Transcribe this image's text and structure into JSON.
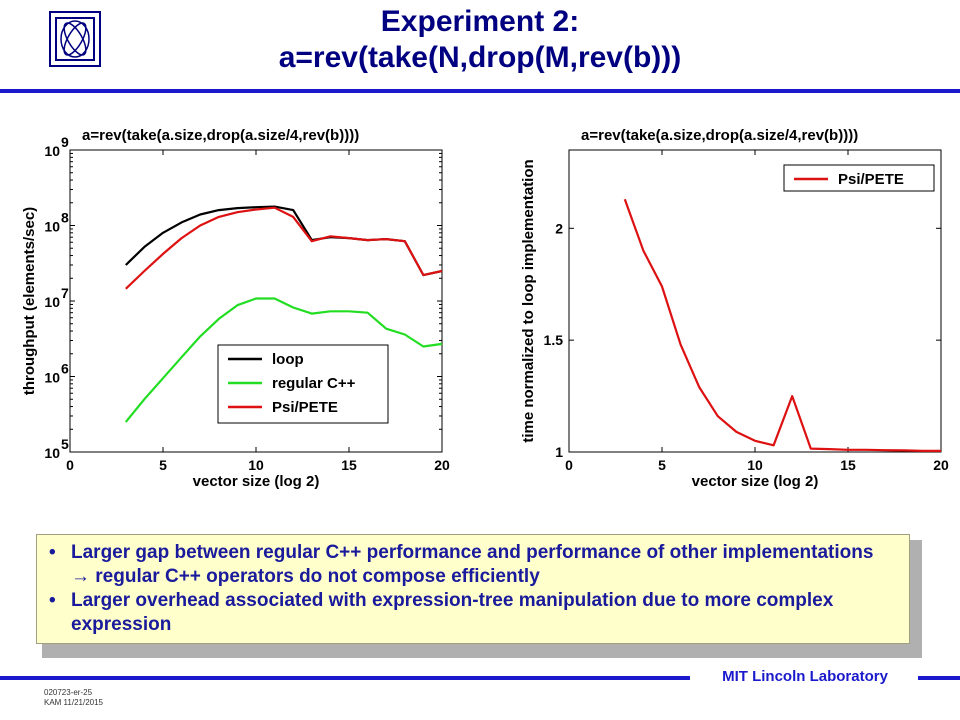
{
  "header": {
    "title_line1": "Experiment 2:",
    "title_line2": "a=rev(take(N,drop(M,rev(b)))",
    "logo_icon": "lincoln-lab-logo-icon"
  },
  "colors": {
    "title": "#000080",
    "rule": "#1a1acc",
    "loop": "#000000",
    "regular": "#22dd22",
    "psi": "#dd1111"
  },
  "chart_data": [
    {
      "type": "line",
      "title": "a=rev(take(a.size,drop(a.size/4,rev(b))))",
      "xlabel": "vector size (log 2)",
      "ylabel": "throughput (elements/sec)",
      "y_scale": "log",
      "xlim": [
        0,
        20
      ],
      "ylim": [
        100000,
        1000000000
      ],
      "x_ticks": [
        0,
        5,
        10,
        15,
        20
      ],
      "y_ticks": [
        {
          "value": 100000,
          "base": "10",
          "exp": "5"
        },
        {
          "value": 1000000,
          "base": "10",
          "exp": "6"
        },
        {
          "value": 10000000,
          "base": "10",
          "exp": "7"
        },
        {
          "value": 100000000,
          "base": "10",
          "exp": "8"
        },
        {
          "value": 1000000000,
          "base": "10",
          "exp": "9"
        }
      ],
      "legend_position": "bottom-right",
      "series": [
        {
          "name": "loop",
          "color": "#000000",
          "x": [
            3,
            4,
            5,
            6,
            7,
            8,
            9,
            10,
            11,
            12,
            13,
            14,
            15,
            16,
            17,
            18,
            19,
            20
          ],
          "y": [
            30000000,
            52000000,
            80000000,
            110000000,
            140000000,
            160000000,
            170000000,
            175000000,
            178000000,
            160000000,
            64000000,
            70000000,
            68000000,
            64000000,
            66000000,
            62000000,
            22000000,
            25000000
          ]
        },
        {
          "name": "regular C++",
          "color": "#22dd22",
          "x": [
            3,
            4,
            5,
            6,
            7,
            8,
            9,
            10,
            11,
            12,
            13,
            14,
            15,
            16,
            17,
            18,
            19,
            20
          ],
          "y": [
            250000,
            500000,
            950000,
            1800000,
            3400000,
            5800000,
            8800000,
            10800000,
            10800000,
            8200000,
            6800000,
            7300000,
            7300000,
            7000000,
            4300000,
            3600000,
            2500000,
            2700000
          ]
        },
        {
          "name": "Psi/PETE",
          "color": "#dd1111",
          "x": [
            3,
            4,
            5,
            6,
            7,
            8,
            9,
            10,
            11,
            12,
            13,
            14,
            15,
            16,
            17,
            18,
            19,
            20
          ],
          "y": [
            14500000,
            25000000,
            42000000,
            68000000,
            100000000,
            130000000,
            150000000,
            163000000,
            172000000,
            130000000,
            62000000,
            72000000,
            68000000,
            64000000,
            66000000,
            62000000,
            22000000,
            25000000
          ]
        }
      ]
    },
    {
      "type": "line",
      "title": "a=rev(take(a.size,drop(a.size/4,rev(b))))",
      "xlabel": "vector size (log 2)",
      "ylabel": "time normalized to loop implementation",
      "xlim": [
        0,
        20
      ],
      "ylim": [
        1,
        2.35
      ],
      "x_ticks": [
        0,
        5,
        10,
        15,
        20
      ],
      "y_ticks": [
        {
          "value": 1,
          "label": "1"
        },
        {
          "value": 1.5,
          "label": "1.5"
        },
        {
          "value": 2,
          "label": "2"
        }
      ],
      "legend_position": "top-right",
      "series": [
        {
          "name": "Psi/PETE",
          "color": "#dd1111",
          "x": [
            3,
            4,
            5,
            6,
            7,
            8,
            9,
            10,
            11,
            12,
            13,
            14,
            15,
            16,
            17,
            18,
            19,
            20
          ],
          "y": [
            2.13,
            1.9,
            1.74,
            1.48,
            1.29,
            1.16,
            1.09,
            1.05,
            1.03,
            1.25,
            1.015,
            1.013,
            1.01,
            1.01,
            1.008,
            1.007,
            1.005,
            1.005
          ]
        }
      ]
    }
  ],
  "notes": {
    "bullets": [
      "Larger gap between regular C++ performance and performance of other implementations  →  regular C++ operators do not compose efficiently",
      "Larger overhead associated with expression-tree manipulation due to more complex expression"
    ],
    "bullet_glyph": "•"
  },
  "footer": {
    "lab": "MIT Lincoln Laboratory",
    "slide_id": "020723-er-25",
    "author_date": "KAM 11/21/2015"
  }
}
